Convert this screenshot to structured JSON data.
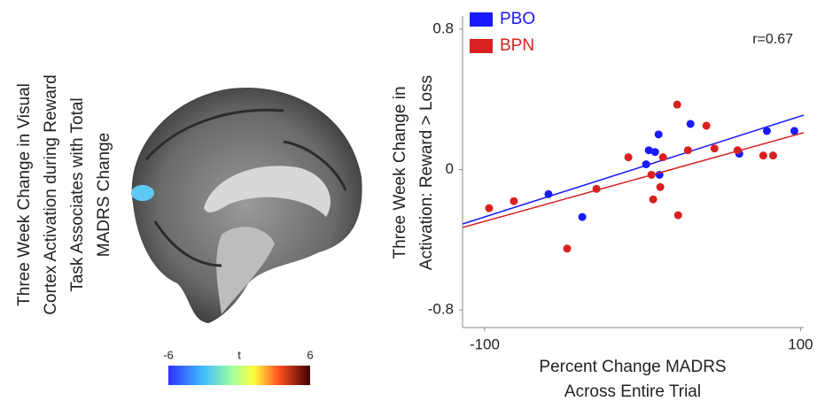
{
  "figure_panel": {
    "title_lines": [
      "Three Week Change in Visual",
      "Cortex Activation during Reward",
      "Task Associates with Total",
      "MADRS Change"
    ],
    "colorbar": {
      "lim": [
        -6,
        6
      ],
      "ticks": [
        -6,
        6
      ],
      "label": "t"
    }
  },
  "chart_data": {
    "type": "scatter",
    "xlabel": [
      "Percent Change MADRS",
      "Across Entire Trial"
    ],
    "ylabel": [
      "Three Week Change in",
      "Activation: Reward > Loss"
    ],
    "annotation": "r=0.67",
    "xlim": [
      -114,
      102
    ],
    "ylim": [
      -0.9,
      0.875
    ],
    "xticks": [
      -100,
      100
    ],
    "yticks": [
      -0.8,
      0,
      0.8
    ],
    "legend": "upper left",
    "series": [
      {
        "name": "PBO",
        "color": "#1a1aff",
        "x": [
          -59.6,
          -38.2,
          2.2,
          3.9,
          7.9,
          10.1,
          10.7,
          30.3,
          61.2,
          78.7,
          96.1
        ],
        "values": [
          -0.14,
          -0.27,
          0.03,
          0.11,
          0.1,
          0.2,
          -0.03,
          0.26,
          0.09,
          0.22,
          0.22
        ],
        "fit_x": [
          -114,
          102
        ],
        "fit_y": [
          -0.31,
          0.31
        ]
      },
      {
        "name": "BPN",
        "color": "#d92020",
        "x": [
          -97.2,
          -81.5,
          -47.8,
          -29.2,
          -9.0,
          5.6,
          6.7,
          11.2,
          12.9,
          21.9,
          22.5,
          28.7,
          40.4,
          45.5,
          60.1,
          76.4,
          82.6
        ],
        "values": [
          -0.22,
          -0.18,
          -0.45,
          -0.11,
          0.07,
          -0.03,
          -0.17,
          -0.1,
          0.07,
          0.37,
          -0.26,
          0.11,
          0.25,
          0.12,
          0.11,
          0.08,
          0.08
        ],
        "fit_x": [
          -114,
          102
        ],
        "fit_y": [
          -0.33,
          0.21
        ]
      }
    ]
  }
}
